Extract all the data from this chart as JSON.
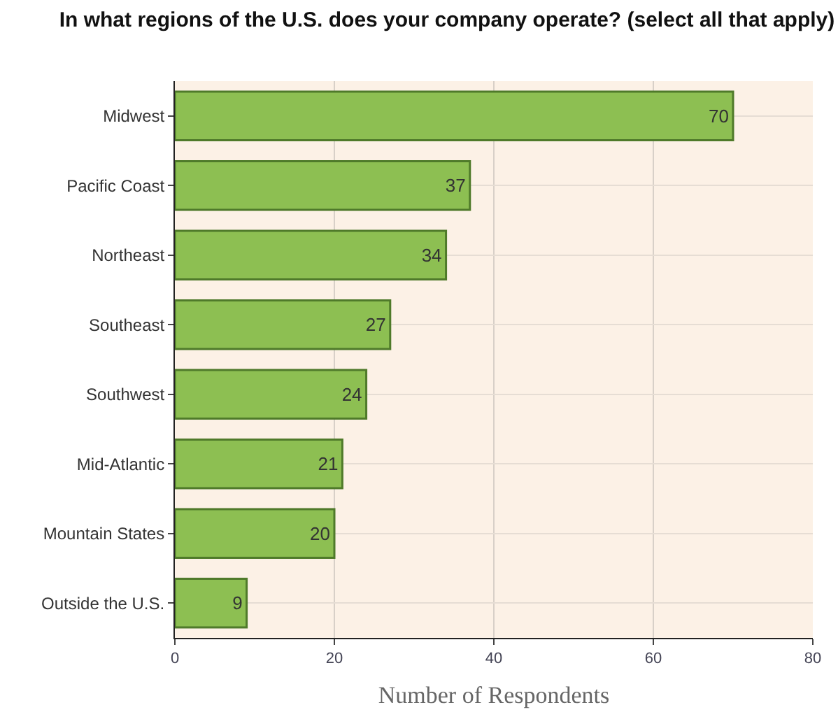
{
  "chart_data": {
    "type": "bar",
    "orientation": "horizontal",
    "title": "In what regions of the U.S. does your company operate? (select all that apply)",
    "xlabel": "Number of Respondents",
    "categories": [
      "Midwest",
      "Pacific Coast",
      "Northeast",
      "Southeast",
      "Southwest",
      "Mid-Atlantic",
      "Mountain States",
      "Outside the U.S."
    ],
    "values": [
      70,
      37,
      34,
      27,
      24,
      21,
      20,
      9
    ],
    "color": "#8dbf52",
    "xlim": [
      0,
      80
    ],
    "xticks": [
      0,
      20,
      40,
      60,
      80
    ],
    "grid": true,
    "data_labels": true
  }
}
